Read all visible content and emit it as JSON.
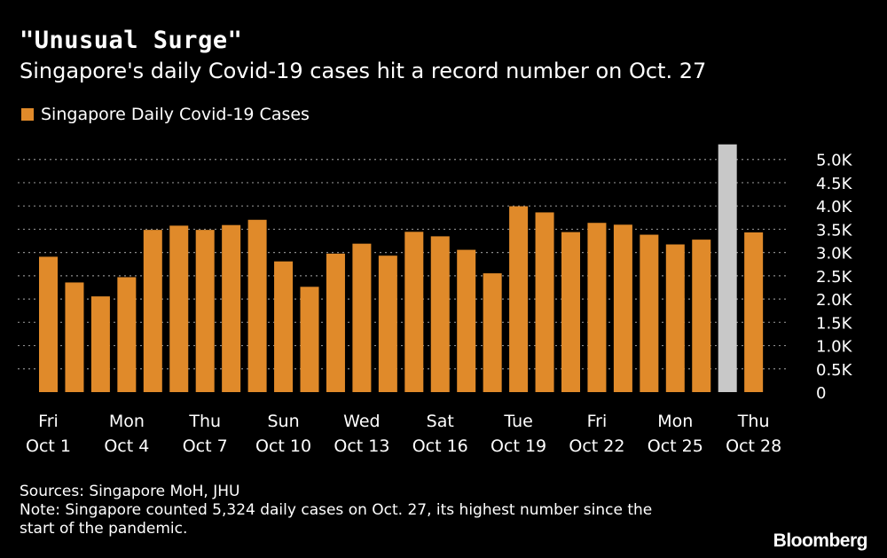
{
  "title": "\"Unusual Surge\"",
  "subtitle": "Singapore's daily Covid-19 cases hit a record number on Oct. 27",
  "legend_label": "Singapore Daily Covid-19 Cases",
  "sources": "Sources: Singapore MoH, JHU",
  "note_line1": "Note: Singapore counted 5,324 daily cases on Oct. 27, its highest number since the",
  "note_line2": "start of the pandemic.",
  "brand": "Bloomberg",
  "colors": {
    "background": "#000000",
    "bar": "#e08a2a",
    "highlight_bar": "#c8c8c8",
    "grid": "#8a8a8a",
    "text": "#ffffff"
  },
  "chart_data": {
    "type": "bar",
    "title": "\"Unusual Surge\"",
    "subtitle": "Singapore's daily Covid-19 cases hit a record number on Oct. 27",
    "legend": [
      "Singapore Daily Covid-19 Cases"
    ],
    "legend_position": "top-left",
    "y_axis_position": "right",
    "grid": "horizontal-dotted",
    "ylim": [
      0,
      5300
    ],
    "yticks": [
      0,
      500,
      1000,
      1500,
      2000,
      2500,
      3000,
      3500,
      4000,
      4500,
      5000
    ],
    "ytick_labels": [
      "0",
      "0.5K",
      "1.0K",
      "1.5K",
      "2.0K",
      "2.5K",
      "3.0K",
      "3.5K",
      "4.0K",
      "4.5K",
      "5.0K"
    ],
    "categories": [
      "Oct 1",
      "Oct 2",
      "Oct 3",
      "Oct 4",
      "Oct 5",
      "Oct 6",
      "Oct 7",
      "Oct 8",
      "Oct 9",
      "Oct 10",
      "Oct 11",
      "Oct 12",
      "Oct 13",
      "Oct 14",
      "Oct 15",
      "Oct 16",
      "Oct 17",
      "Oct 18",
      "Oct 19",
      "Oct 20",
      "Oct 21",
      "Oct 22",
      "Oct 23",
      "Oct 24",
      "Oct 25",
      "Oct 26",
      "Oct 27",
      "Oct 28"
    ],
    "values": [
      2909,
      2356,
      2057,
      2470,
      3486,
      3577,
      3486,
      3590,
      3703,
      2809,
      2263,
      2976,
      3190,
      2932,
      3445,
      3348,
      3058,
      2553,
      3994,
      3862,
      3439,
      3637,
      3598,
      3383,
      3174,
      3277,
      5324,
      3432
    ],
    "highlight": [
      "Oct 27"
    ],
    "x_tick_labels": [
      {
        "day": "Fri",
        "date": "Oct 1",
        "category": "Oct 1"
      },
      {
        "day": "Mon",
        "date": "Oct 4",
        "category": "Oct 4"
      },
      {
        "day": "Thu",
        "date": "Oct 7",
        "category": "Oct 7"
      },
      {
        "day": "Sun",
        "date": "Oct 10",
        "category": "Oct 10"
      },
      {
        "day": "Wed",
        "date": "Oct 13",
        "category": "Oct 13"
      },
      {
        "day": "Sat",
        "date": "Oct 16",
        "category": "Oct 16"
      },
      {
        "day": "Tue",
        "date": "Oct 19",
        "category": "Oct 19"
      },
      {
        "day": "Fri",
        "date": "Oct 22",
        "category": "Oct 22"
      },
      {
        "day": "Mon",
        "date": "Oct 25",
        "category": "Oct 25"
      },
      {
        "day": "Thu",
        "date": "Oct 28",
        "category": "Oct 28"
      }
    ]
  }
}
